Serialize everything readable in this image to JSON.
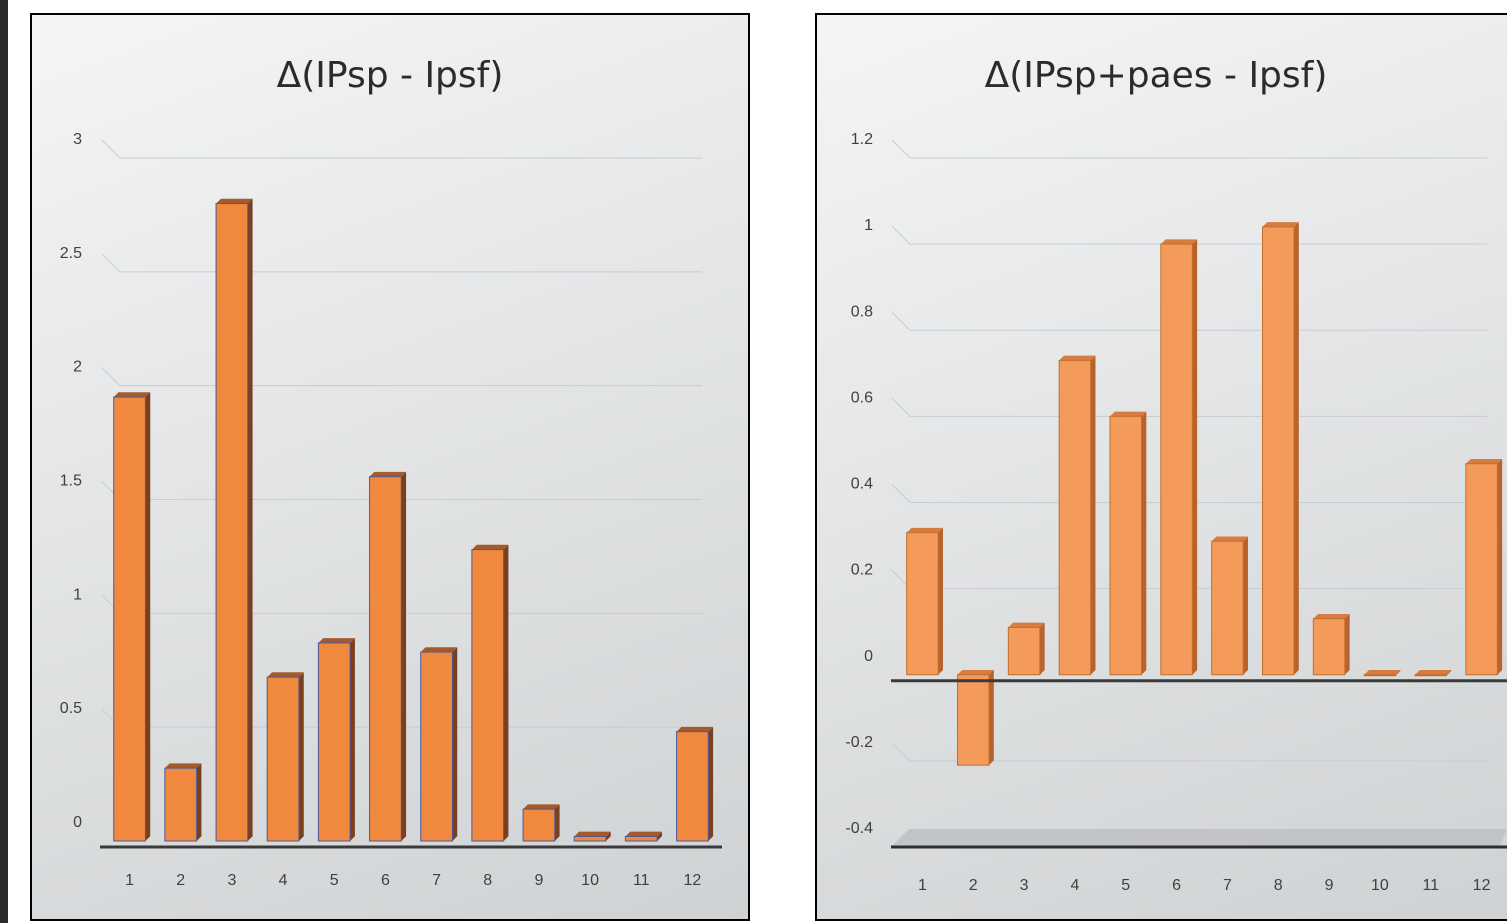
{
  "chart_data": [
    {
      "type": "bar",
      "title": "Δ(IPsp - Ipsf)",
      "categories": [
        "1",
        "2",
        "3",
        "4",
        "5",
        "6",
        "7",
        "8",
        "9",
        "10",
        "11",
        "12"
      ],
      "values": [
        1.95,
        0.32,
        2.8,
        0.72,
        0.87,
        1.6,
        0.83,
        1.28,
        0.14,
        0.02,
        0.02,
        0.48
      ],
      "ylim": [
        0,
        3
      ],
      "yticks": [
        "0",
        "0.5",
        "1",
        "1.5",
        "2",
        "2.5",
        "3"
      ],
      "ytick_values": [
        0,
        0.5,
        1,
        1.5,
        2,
        2.5,
        3
      ],
      "grid": true,
      "bar_color": "#f0883e"
    },
    {
      "type": "bar",
      "title": "Δ(IPsp+paes - Ipsf)",
      "categories": [
        "1",
        "2",
        "3",
        "4",
        "5",
        "6",
        "7",
        "8",
        "9",
        "10",
        "11",
        "12"
      ],
      "values": [
        0.33,
        -0.21,
        0.11,
        0.73,
        0.6,
        1.0,
        0.31,
        1.04,
        0.13,
        0.0,
        0.0,
        0.49
      ],
      "ylim": [
        -0.4,
        1.2
      ],
      "yticks": [
        "-0.4",
        "-0.2",
        "0",
        "0.2",
        "0.4",
        "0.6",
        "0.8",
        "1",
        "1.2"
      ],
      "ytick_values": [
        -0.4,
        -0.2,
        0,
        0.2,
        0.4,
        0.6,
        0.8,
        1,
        1.2
      ],
      "grid": true,
      "bar_color": "#f49a5a"
    }
  ]
}
